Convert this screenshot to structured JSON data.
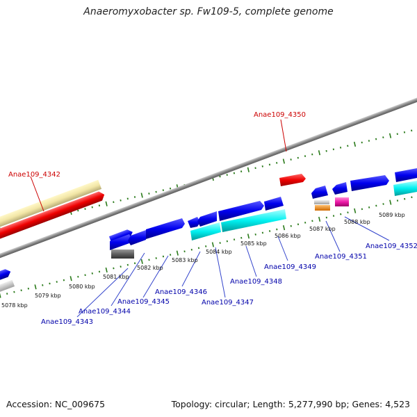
{
  "title": "Anaeromyxobacter sp. Fw109-5, complete genome",
  "footer": {
    "accession": "Accession: NC_009675",
    "summary": "Topology: circular; Length: 5,277,990 bp; Genes: 4,523"
  },
  "colors": {
    "backbone": "#8f8f8f",
    "tick": "#2a7a1a",
    "label_red": "#cc0000",
    "label_blue": "#0000aa",
    "leader_blue": "#3344cc"
  },
  "kbp_labels": [
    "5078 kbp",
    "5079 kbp",
    "5080 kbp",
    "5081 kbp",
    "5082 kbp",
    "5083 kbp",
    "5084 kbp",
    "5085 kbp",
    "5086 kbp",
    "5087 kbp",
    "5088 kbp",
    "5089 kbp"
  ],
  "gene_labels_red": [
    "Anae109_4342",
    "Anae109_4350"
  ],
  "gene_labels_blue": [
    "Anae109_4343",
    "Anae109_4344",
    "Anae109_4345",
    "Anae109_4346",
    "Anae109_4347",
    "Anae109_4348",
    "Anae109_4349",
    "Anae109_4351",
    "Anae109_4352"
  ]
}
